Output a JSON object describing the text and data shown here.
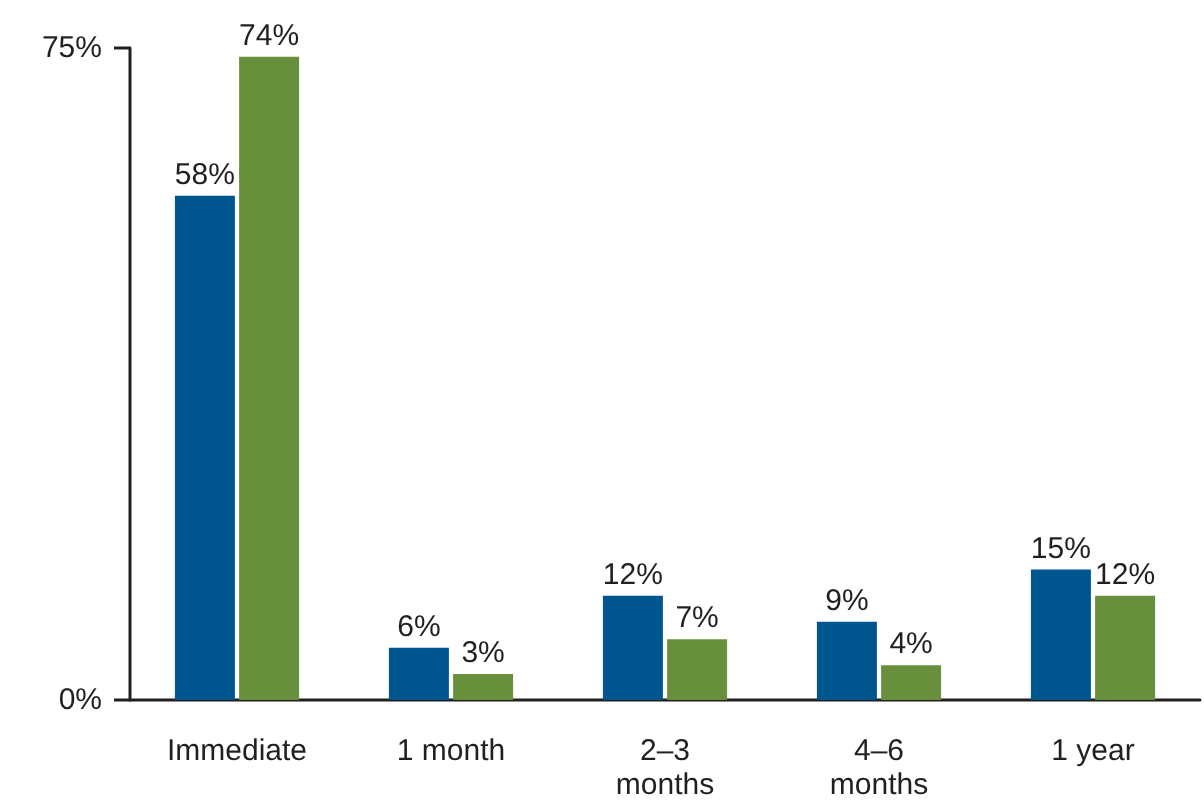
{
  "chart_data": {
    "type": "bar",
    "categories": [
      "Immediate",
      "1 month",
      "2–3\nmonths",
      "4–6\nmonths",
      "1 year"
    ],
    "series": [
      {
        "color": "#00578f",
        "values": [
          58,
          6,
          12,
          9,
          15
        ],
        "value_labels": [
          "58%",
          "6%",
          "12%",
          "9%",
          "15%"
        ]
      },
      {
        "color": "#68903c",
        "values": [
          74,
          3,
          7,
          4,
          12
        ],
        "value_labels": [
          "74%",
          "3%",
          "7%",
          "4%",
          "12%"
        ]
      }
    ],
    "ylim": [
      0,
      75
    ],
    "yticks": [
      {
        "value": 0,
        "label": "0%"
      },
      {
        "value": 75,
        "label": "75%"
      }
    ],
    "grid": false
  }
}
